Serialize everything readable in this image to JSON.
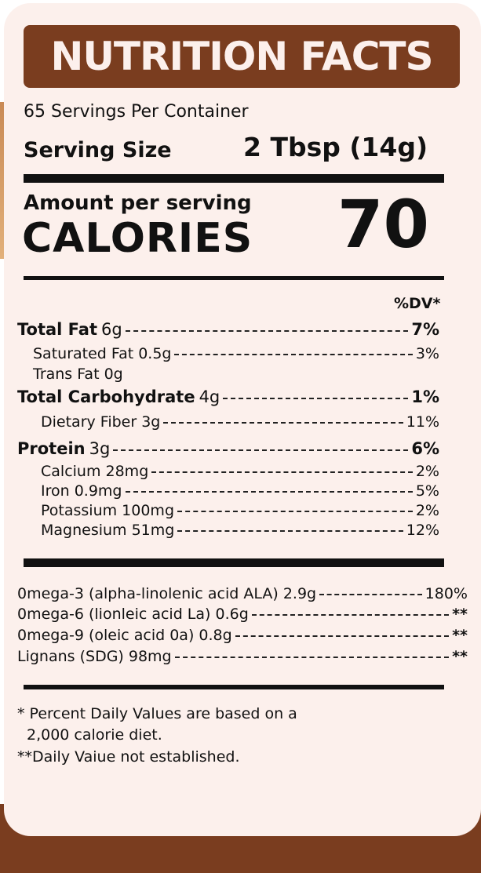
{
  "title": "NUTRITION FACTS",
  "servings_per_container": "65 Servings Per Container",
  "serving_size_label": "Serving Size",
  "serving_size_value": "2 Tbsp (14g)",
  "amount_per_serving": "Amount per serving",
  "calories_label": "CALORIES",
  "calories_value": "70",
  "dv_header": "%DV*",
  "nutrients": [
    {
      "name": "Total Fat",
      "amount": "6g",
      "dv": "7%",
      "bold": true,
      "indent": 0
    },
    {
      "name": "Saturated Fat 0.5g",
      "amount": "",
      "dv": "3%",
      "bold": false,
      "indent": 1
    },
    {
      "name": "Trans Fat 0g",
      "amount": "",
      "dv": "",
      "bold": false,
      "indent": 1
    },
    {
      "name": "Total Carbohydrate",
      "amount": "4g",
      "dv": "1%",
      "bold": true,
      "indent": 0
    },
    {
      "name": "Dietary Fiber 3g",
      "amount": "",
      "dv": "11%",
      "bold": false,
      "indent": 2
    },
    {
      "name": "Protein",
      "amount": "3g",
      "dv": "6%",
      "bold": true,
      "indent": 0
    },
    {
      "name": "Calcium 28mg",
      "amount": "",
      "dv": "2%",
      "bold": false,
      "indent": 2
    },
    {
      "name": "Iron 0.9mg",
      "amount": "",
      "dv": "5%",
      "bold": false,
      "indent": 2
    },
    {
      "name": "Potassium 100mg",
      "amount": "",
      "dv": "2%",
      "bold": false,
      "indent": 2
    },
    {
      "name": "Magnesium 51mg",
      "amount": "",
      "dv": "12%",
      "bold": false,
      "indent": 2
    }
  ],
  "fatty_acids": [
    {
      "name": "0mega-3 (alpha-linolenic acid ALA) 2.9g",
      "dv": "180%"
    },
    {
      "name": "0mega-6 (lionleic acid La) 0.6g",
      "dv": "**"
    },
    {
      "name": "0mega-9 (oleic acid 0a) 0.8g",
      "dv": "**"
    },
    {
      "name": "Lignans (SDG) 98mg",
      "dv": "**"
    }
  ],
  "footnote_1a": "* Percent Daily Values are based on a",
  "footnote_1b": "2,000 calorie diet.",
  "footnote_2": "**Daily Vaiue not established.",
  "colors": {
    "brand": "#7a3d1f",
    "card": "#fcf0ec"
  }
}
